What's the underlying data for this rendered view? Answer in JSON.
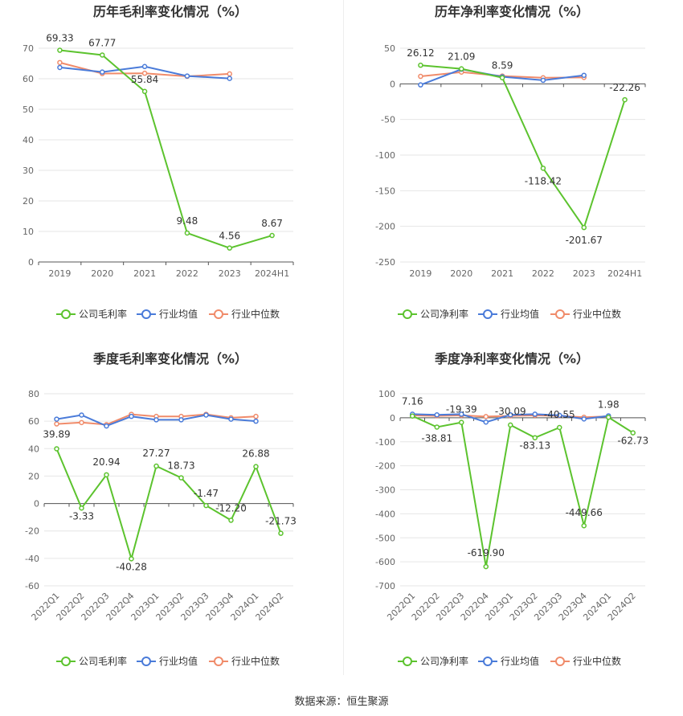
{
  "colors": {
    "company": "#5cc32e",
    "industry_avg": "#4a7bd9",
    "industry_median": "#f08b6a"
  },
  "footer": {
    "source": "数据来源：恒生聚源"
  },
  "chart_data": [
    {
      "type": "line",
      "title": "历年毛利率变化情况（%）",
      "categories": [
        "2019",
        "2020",
        "2021",
        "2022",
        "2023",
        "2024H1"
      ],
      "ylim": [
        0,
        70
      ],
      "yticks": [
        0,
        10,
        20,
        30,
        40,
        50,
        60,
        70
      ],
      "rotate_x": false,
      "series": [
        {
          "name": "公司毛利率",
          "color": "#5cc32e",
          "values": [
            69.33,
            67.77,
            55.84,
            9.48,
            4.56,
            8.67
          ],
          "labels": [
            "69.33",
            "67.77",
            "55.84",
            "9.48",
            "4.56",
            "8.67"
          ]
        },
        {
          "name": "行业均值",
          "color": "#4a7bd9",
          "values": [
            63.7,
            62.2,
            64.0,
            60.9,
            60.1,
            null
          ]
        },
        {
          "name": "行业中位数",
          "color": "#f08b6a",
          "values": [
            65.3,
            61.7,
            61.8,
            60.8,
            61.6,
            null
          ]
        }
      ]
    },
    {
      "type": "line",
      "title": "历年净利率变化情况（%）",
      "categories": [
        "2019",
        "2020",
        "2021",
        "2022",
        "2023",
        "2024H1"
      ],
      "ylim": [
        -250,
        50
      ],
      "yticks": [
        -250,
        -200,
        -150,
        -100,
        -50,
        0,
        50
      ],
      "rotate_x": false,
      "series": [
        {
          "name": "公司净利率",
          "color": "#5cc32e",
          "values": [
            26.12,
            21.09,
            8.59,
            -118.42,
            -201.67,
            -22.26
          ],
          "labels": [
            "26.12",
            "21.09",
            "8.59",
            "-118.42",
            "-201.67",
            "-22.26"
          ]
        },
        {
          "name": "行业均值",
          "color": "#4a7bd9",
          "values": [
            -1.5,
            20.5,
            10.0,
            5.0,
            12.0,
            null
          ]
        },
        {
          "name": "行业中位数",
          "color": "#f08b6a",
          "values": [
            10.5,
            16.5,
            11.0,
            8.5,
            9.0,
            null
          ]
        }
      ]
    },
    {
      "type": "line",
      "title": "季度毛利率变化情况（%）",
      "categories": [
        "2022Q1",
        "2022Q2",
        "2022Q3",
        "2022Q4",
        "2023Q1",
        "2023Q2",
        "2023Q3",
        "2023Q4",
        "2024Q1",
        "2024Q2"
      ],
      "ylim": [
        -60,
        80
      ],
      "yticks": [
        -60,
        -40,
        -20,
        0,
        20,
        40,
        60,
        80
      ],
      "rotate_x": true,
      "series": [
        {
          "name": "公司毛利率",
          "color": "#5cc32e",
          "values": [
            39.89,
            -3.33,
            20.94,
            -40.28,
            27.27,
            18.73,
            -1.47,
            -12.2,
            26.88,
            -21.73
          ],
          "labels": [
            "39.89",
            "-3.33",
            "20.94",
            "-40.28",
            "27.27",
            "18.73",
            "-1.47",
            "-12.20",
            "26.88",
            "-21.73"
          ]
        },
        {
          "name": "行业均值",
          "color": "#4a7bd9",
          "values": [
            61.5,
            64.5,
            56.5,
            63.5,
            61.0,
            61.0,
            64.5,
            61.5,
            60.0,
            null
          ]
        },
        {
          "name": "行业中位数",
          "color": "#f08b6a",
          "values": [
            58.0,
            59.0,
            57.5,
            65.0,
            63.5,
            63.5,
            65.0,
            62.5,
            63.5,
            null
          ]
        }
      ]
    },
    {
      "type": "line",
      "title": "季度净利率变化情况（%）",
      "categories": [
        "2022Q1",
        "2022Q2",
        "2022Q3",
        "2022Q4",
        "2023Q1",
        "2023Q2",
        "2023Q3",
        "2023Q4",
        "2024Q1",
        "2024Q2"
      ],
      "ylim": [
        -700,
        100
      ],
      "yticks": [
        -700,
        -600,
        -500,
        -400,
        -300,
        -200,
        -100,
        0,
        100
      ],
      "rotate_x": true,
      "series": [
        {
          "name": "公司净利率",
          "color": "#5cc32e",
          "values": [
            7.16,
            -38.81,
            -19.39,
            -619.9,
            -30.09,
            -83.13,
            -40.55,
            -449.66,
            1.98,
            -62.73
          ],
          "labels": [
            "7.16",
            "-38.81",
            "-19.39",
            "-619.90",
            "-30.09",
            "-83.13",
            "-40.55",
            "-449.66",
            "1.98",
            "-62.73"
          ]
        },
        {
          "name": "行业均值",
          "color": "#4a7bd9",
          "values": [
            15,
            12,
            15,
            -18,
            12,
            15,
            10,
            -5,
            8,
            null
          ]
        },
        {
          "name": "行业中位数",
          "color": "#f08b6a",
          "values": [
            10,
            8,
            10,
            5,
            8,
            10,
            8,
            2,
            6,
            null
          ]
        }
      ]
    }
  ]
}
